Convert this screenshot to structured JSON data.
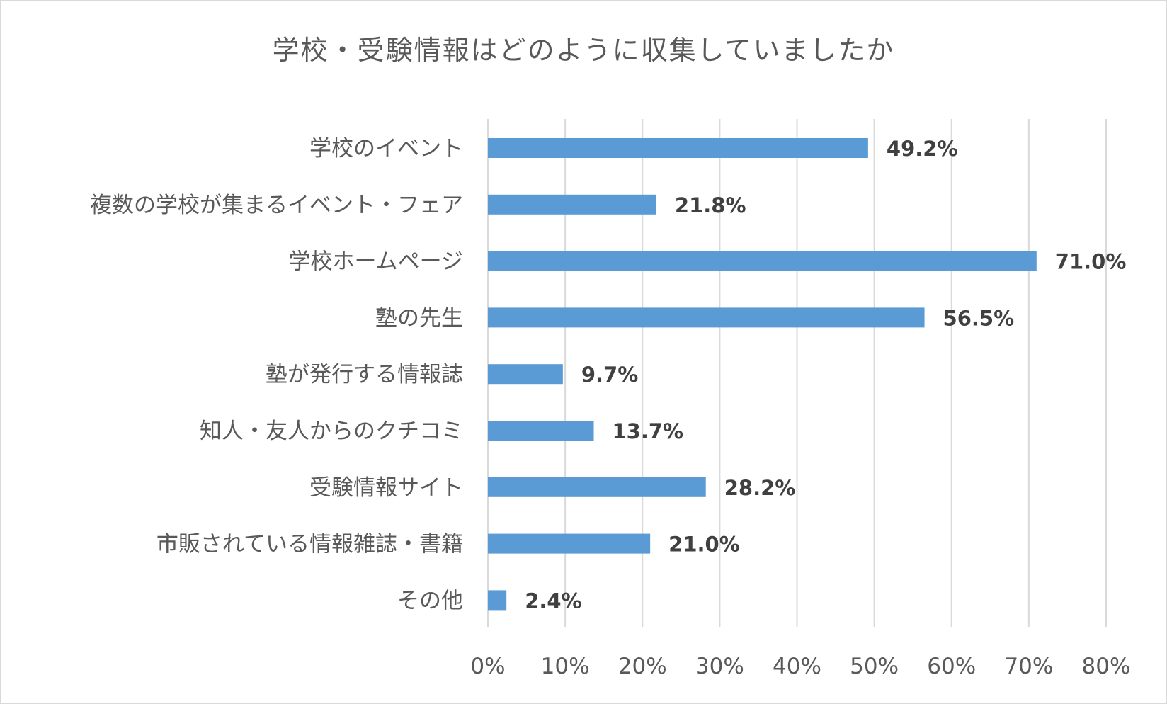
{
  "chart_data": {
    "type": "bar",
    "orientation": "horizontal",
    "title": "学校・受験情報はどのように収集していましたか",
    "categories": [
      "学校のイベント",
      "複数の学校が集まるイベント・フェア",
      "学校ホームページ",
      "塾の先生",
      "塾が発行する情報誌",
      "知人・友人からのクチコミ",
      "受験情報サイト",
      "市販されている情報雑誌・書籍",
      "その他"
    ],
    "values": [
      49.2,
      21.8,
      71.0,
      56.5,
      9.7,
      13.7,
      28.2,
      21.0,
      2.4
    ],
    "value_labels": [
      "49.2%",
      "21.8%",
      "71.0%",
      "56.5%",
      "9.7%",
      "13.7%",
      "28.2%",
      "21.0%",
      "2.4%"
    ],
    "xlim": [
      0,
      80
    ],
    "xticks": [
      0,
      10,
      20,
      30,
      40,
      50,
      60,
      70,
      80
    ],
    "xtick_labels": [
      "0%",
      "10%",
      "20%",
      "30%",
      "40%",
      "50%",
      "60%",
      "70%",
      "80%"
    ],
    "grid": "vertical",
    "legend": "none",
    "colors": {
      "bar": "#5b9bd5",
      "grid": "#d9d9d9",
      "text": "#595959",
      "data_label": "#404040"
    }
  }
}
